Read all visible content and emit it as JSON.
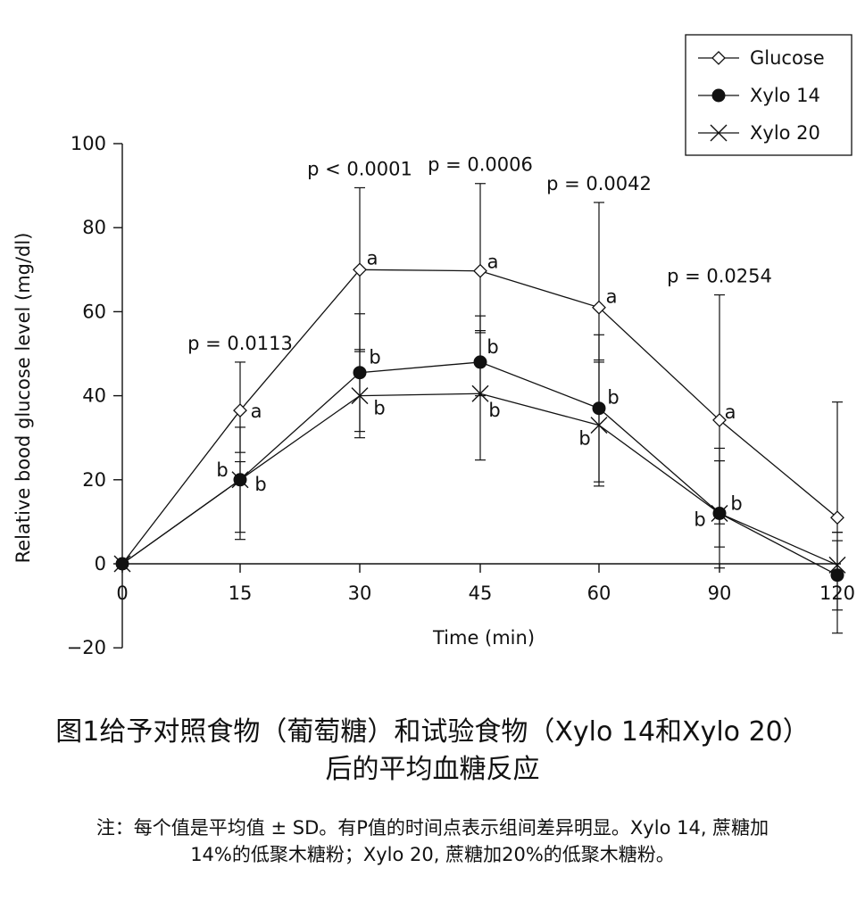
{
  "chart_data": {
    "type": "line",
    "xlabel": "Time (min)",
    "ylabel": "Relative bood glucose level (mg/dl)",
    "categories": [
      "0",
      "15",
      "30",
      "45",
      "60",
      "90",
      "120"
    ],
    "ylim": [
      -20,
      100
    ],
    "yticks": [
      -20,
      0,
      20,
      40,
      60,
      80,
      100
    ],
    "ytick_labels": [
      "−20",
      "0",
      "20",
      "40",
      "60",
      "80",
      "100"
    ],
    "legend_position": "top-right",
    "grid": false,
    "series": [
      {
        "name": "Glucose",
        "marker": "diamond-open",
        "values": [
          0,
          36.5,
          70,
          69.7,
          61,
          34.2,
          11
        ],
        "err_low": [
          0,
          26.5,
          50.5,
          55,
          48.5,
          9.5,
          7.5
        ],
        "err_high": [
          0,
          48,
          89.5,
          90.5,
          86,
          64,
          38.5
        ],
        "letters": [
          "",
          "a",
          "a",
          "a",
          "a",
          "a",
          ""
        ]
      },
      {
        "name": "Xylo 14",
        "marker": "circle-filled",
        "values": [
          0,
          20,
          45.5,
          48,
          37,
          12,
          -2.7
        ],
        "err_low": [
          0,
          7.5,
          31.5,
          40,
          19.5,
          4,
          -11
        ],
        "err_high": [
          0,
          32.5,
          59.5,
          59,
          54.5,
          27.5,
          5.5
        ],
        "letters": [
          "",
          "b",
          "b",
          "b",
          "b",
          "b",
          ""
        ]
      },
      {
        "name": "Xylo 20",
        "marker": "cross",
        "values": [
          0,
          20,
          40,
          40.5,
          33,
          12,
          -0.3
        ],
        "err_low": [
          0,
          5.8,
          30,
          24.7,
          18.5,
          -1,
          -16.5
        ],
        "err_high": [
          0,
          24.3,
          51,
          55.5,
          48,
          24.5,
          7.5
        ],
        "letters": [
          "",
          "b",
          "b",
          "b",
          "b",
          "b",
          ""
        ]
      }
    ],
    "annotations": [
      {
        "text": "p = 0.0113",
        "x_index": 1,
        "y": 51
      },
      {
        "text": "p < 0.0001",
        "x_index": 2,
        "y": 92.5
      },
      {
        "text": "p = 0.0006",
        "x_index": 3,
        "y": 93.5
      },
      {
        "text": "p = 0.0042",
        "x_index": 4,
        "y": 89
      },
      {
        "text": "p = 0.0254",
        "x_index": 5,
        "y": 67
      }
    ]
  },
  "caption": {
    "title_line1": "图1给予对照食物（葡萄糖）和试验食物（Xylo 14和Xylo 20）",
    "title_line2": "后的平均血糖反应",
    "note_line1": "注：每个值是平均值 ± SD。有P值的时间点表示组间差异明显。Xylo 14, 蔗糖加",
    "note_line2": "14%的低聚木糖粉；Xylo 20, 蔗糖加20%的低聚木糖粉。"
  }
}
